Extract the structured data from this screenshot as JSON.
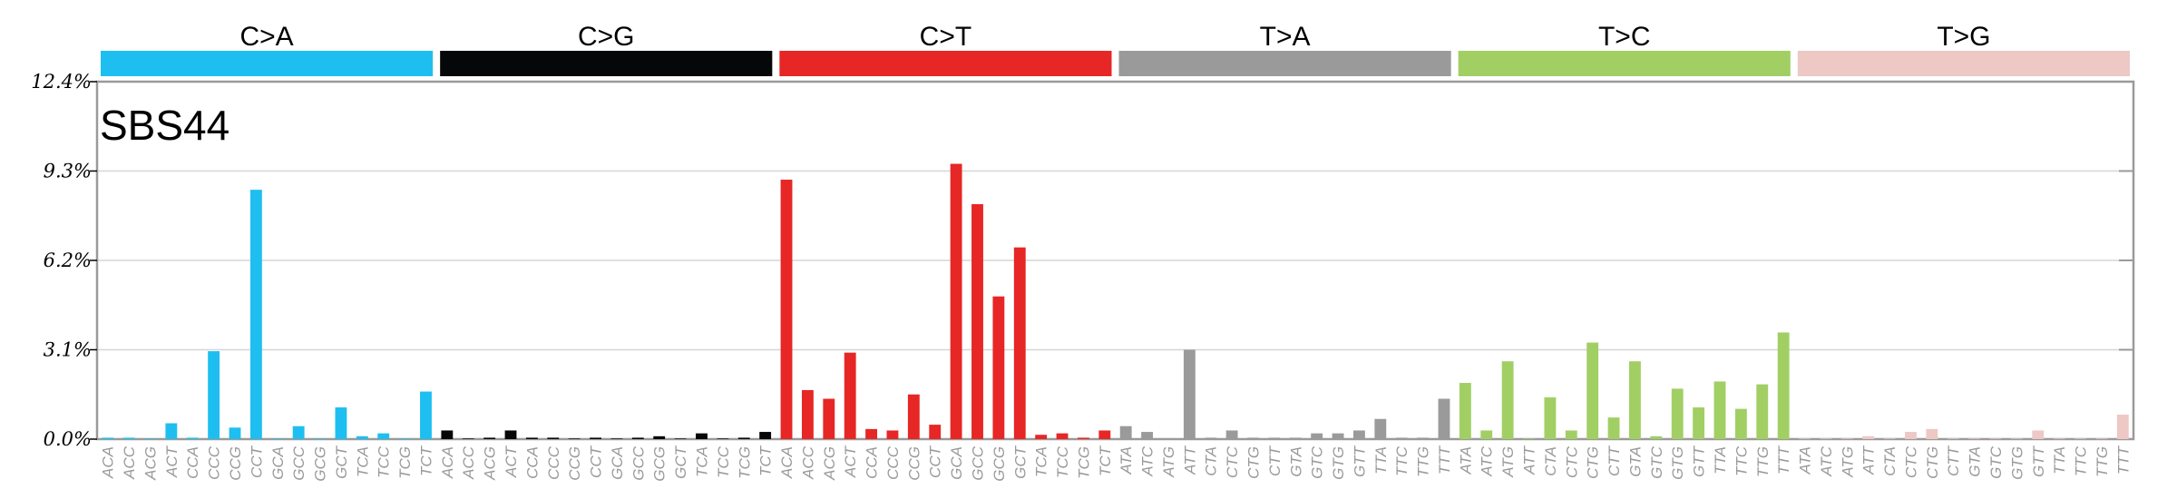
{
  "chart_data": {
    "type": "bar",
    "title": "SBS44",
    "yticks": [
      "0.0%",
      "3.1%",
      "6.2%",
      "9.3%",
      "12.4%"
    ],
    "ylim": [
      0,
      12.4
    ],
    "grid": true,
    "groups": [
      {
        "name": "C>A",
        "color": "#1ebff0",
        "contexts": [
          "ACA",
          "ACC",
          "ACG",
          "ACT",
          "CCA",
          "CCC",
          "CCG",
          "CCT",
          "GCA",
          "GCC",
          "GCG",
          "GCT",
          "TCA",
          "TCC",
          "TCG",
          "TCT"
        ],
        "values": [
          0.05,
          0.05,
          0.02,
          0.55,
          0.05,
          3.05,
          0.4,
          8.65,
          0.02,
          0.45,
          0.02,
          1.1,
          0.1,
          0.2,
          0.02,
          1.65
        ]
      },
      {
        "name": "C>G",
        "color": "#050708",
        "contexts": [
          "ACA",
          "ACC",
          "ACG",
          "ACT",
          "CCA",
          "CCC",
          "CCG",
          "CCT",
          "GCA",
          "GCC",
          "GCG",
          "GCT",
          "TCA",
          "TCC",
          "TCG",
          "TCT"
        ],
        "values": [
          0.3,
          0.02,
          0.05,
          0.3,
          0.05,
          0.05,
          0.02,
          0.05,
          0.02,
          0.05,
          0.1,
          0.02,
          0.2,
          0.02,
          0.05,
          0.25
        ]
      },
      {
        "name": "C>T",
        "color": "#e62725",
        "contexts": [
          "ACA",
          "ACC",
          "ACG",
          "ACT",
          "CCA",
          "CCC",
          "CCG",
          "CCT",
          "GCA",
          "GCC",
          "GCG",
          "GCT",
          "TCA",
          "TCC",
          "TCG",
          "TCT"
        ],
        "values": [
          9.0,
          1.7,
          1.4,
          3.0,
          0.35,
          0.3,
          1.55,
          0.5,
          9.55,
          8.15,
          4.95,
          6.65,
          0.15,
          0.2,
          0.05,
          0.3
        ]
      },
      {
        "name": "T>A",
        "color": "#9a9a9a",
        "contexts": [
          "ATA",
          "ATC",
          "ATG",
          "ATT",
          "CTA",
          "CTC",
          "CTG",
          "CTT",
          "GTA",
          "GTC",
          "GTG",
          "GTT",
          "TTA",
          "TTC",
          "TTG",
          "TTT"
        ],
        "values": [
          0.45,
          0.25,
          0.02,
          3.1,
          0.05,
          0.3,
          0.05,
          0.05,
          0.05,
          0.2,
          0.2,
          0.3,
          0.7,
          0.05,
          0.05,
          1.4
        ]
      },
      {
        "name": "T>C",
        "color": "#a1cf64",
        "contexts": [
          "ATA",
          "ATC",
          "ATG",
          "ATT",
          "CTA",
          "CTC",
          "CTG",
          "CTT",
          "GTA",
          "GTC",
          "GTG",
          "GTT",
          "TTA",
          "TTC",
          "TTG",
          "TTT"
        ],
        "values": [
          1.95,
          0.3,
          2.7,
          0.02,
          1.45,
          0.3,
          3.35,
          0.75,
          2.7,
          0.1,
          1.75,
          1.1,
          2.0,
          1.05,
          1.9,
          3.7
        ]
      },
      {
        "name": "T>G",
        "color": "#edc8c5",
        "contexts": [
          "ATA",
          "ATC",
          "ATG",
          "ATT",
          "CTA",
          "CTC",
          "CTG",
          "CTT",
          "GTA",
          "GTC",
          "GTG",
          "GTT",
          "TTA",
          "TTC",
          "TTG",
          "TTT"
        ],
        "values": [
          0.02,
          0.02,
          0.02,
          0.1,
          0.02,
          0.25,
          0.35,
          0.02,
          0.02,
          0.02,
          0.02,
          0.3,
          0.02,
          0.02,
          0.02,
          0.85
        ]
      }
    ]
  }
}
